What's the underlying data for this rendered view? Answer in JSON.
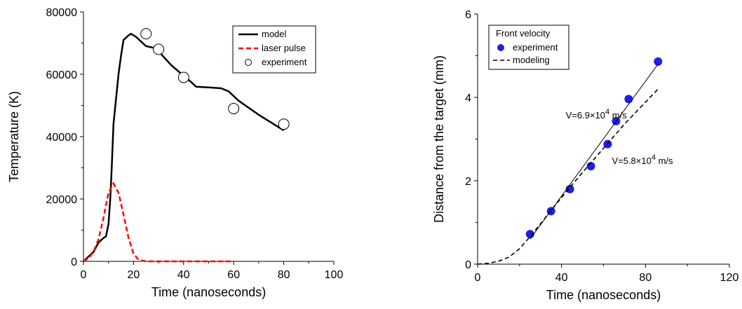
{
  "chart_data": [
    {
      "type": "line",
      "xlabel": "Time (nanoseconds)",
      "ylabel": "Temperature (K)",
      "xlim": [
        0,
        100
      ],
      "ylim": [
        0,
        80000
      ],
      "xticks": [
        "0",
        "20",
        "40",
        "60",
        "80",
        "100"
      ],
      "yticks": [
        "0",
        "20000",
        "40000",
        "60000",
        "80000"
      ],
      "grid": false,
      "legend_position": "top-right",
      "series": [
        {
          "name": "model",
          "style": "solid",
          "color": "#000000",
          "points": [
            [
              0,
              0
            ],
            [
              2,
              1500
            ],
            [
              4,
              3000
            ],
            [
              6,
              6000
            ],
            [
              8,
              7500
            ],
            [
              9,
              8000
            ],
            [
              10,
              12000
            ],
            [
              10.7,
              20000
            ],
            [
              11.3,
              30000
            ],
            [
              12,
              44000
            ],
            [
              13,
              52000
            ],
            [
              14,
              60000
            ],
            [
              15,
              66000
            ],
            [
              16,
              71000
            ],
            [
              18,
              72500
            ],
            [
              19,
              73000
            ],
            [
              21,
              72000
            ],
            [
              23,
              70500
            ],
            [
              25,
              69000
            ],
            [
              28,
              68500
            ],
            [
              31,
              66500
            ],
            [
              35,
              63000
            ],
            [
              40,
              59500
            ],
            [
              43,
              57500
            ],
            [
              45,
              56000
            ],
            [
              50,
              55800
            ],
            [
              55,
              55500
            ],
            [
              58,
              54500
            ],
            [
              62,
              51500
            ],
            [
              70,
              47000
            ],
            [
              80,
              42000
            ]
          ]
        },
        {
          "name": "laser pulse",
          "style": "dashed",
          "color": "#ff0000",
          "points": [
            [
              0,
              0
            ],
            [
              2,
              1000
            ],
            [
              4,
              3000
            ],
            [
              6,
              7000
            ],
            [
              8,
              14000
            ],
            [
              10,
              22000
            ],
            [
              12,
              25000
            ],
            [
              14,
              22000
            ],
            [
              16,
              15000
            ],
            [
              18,
              7500
            ],
            [
              20,
              2500
            ],
            [
              22,
              500
            ],
            [
              25,
              0
            ],
            [
              30,
              0
            ],
            [
              40,
              0
            ],
            [
              50,
              0
            ],
            [
              60,
              0
            ]
          ]
        },
        {
          "name": "experiment",
          "style": "open-circle",
          "color": "#000000",
          "points": [
            [
              25,
              73000
            ],
            [
              30,
              68000
            ],
            [
              40,
              59000
            ],
            [
              60,
              49000
            ],
            [
              80,
              44000
            ]
          ]
        }
      ]
    },
    {
      "type": "scatter",
      "xlabel": "Time (nanoseconds)",
      "ylabel": "Distance from the target (mm)",
      "xlim": [
        0,
        120
      ],
      "ylim": [
        0,
        6
      ],
      "xticks": [
        "0",
        "40",
        "80",
        "120"
      ],
      "yticks": [
        "0",
        "2",
        "4",
        "6"
      ],
      "grid": false,
      "legend_position": "top-left",
      "legend_title": "Front velocity",
      "series": [
        {
          "name": "experiment",
          "style": "filled-circle",
          "color": "#1f1fe6",
          "points": [
            [
              25,
              0.72
            ],
            [
              35,
              1.27
            ],
            [
              44,
              1.8
            ],
            [
              54,
              2.35
            ],
            [
              62,
              2.88
            ],
            [
              66,
              3.43
            ],
            [
              72,
              3.96
            ],
            [
              86,
              4.86
            ]
          ]
        },
        {
          "name": "modeling",
          "style": "dashed",
          "color": "#000000",
          "points": [
            [
              0,
              0
            ],
            [
              5,
              0.02
            ],
            [
              10,
              0.07
            ],
            [
              15,
              0.17
            ],
            [
              20,
              0.37
            ],
            [
              25,
              0.66
            ],
            [
              30,
              0.97
            ],
            [
              40,
              1.6
            ],
            [
              50,
              2.2
            ],
            [
              60,
              2.78
            ],
            [
              70,
              3.36
            ],
            [
              86,
              4.2
            ]
          ]
        },
        {
          "name": "",
          "style": "solid",
          "color": "#000000",
          "points": [
            [
              25,
              0.6
            ],
            [
              86,
              4.8
            ]
          ]
        }
      ],
      "annotations": [
        {
          "base": "V=6.9×10",
          "exp": "4",
          "unit": " m/s",
          "x": 42,
          "y": 3.5
        },
        {
          "base": "V=5.8×10",
          "exp": "4",
          "unit": " m/s",
          "x": 64,
          "y": 2.4
        }
      ]
    }
  ]
}
